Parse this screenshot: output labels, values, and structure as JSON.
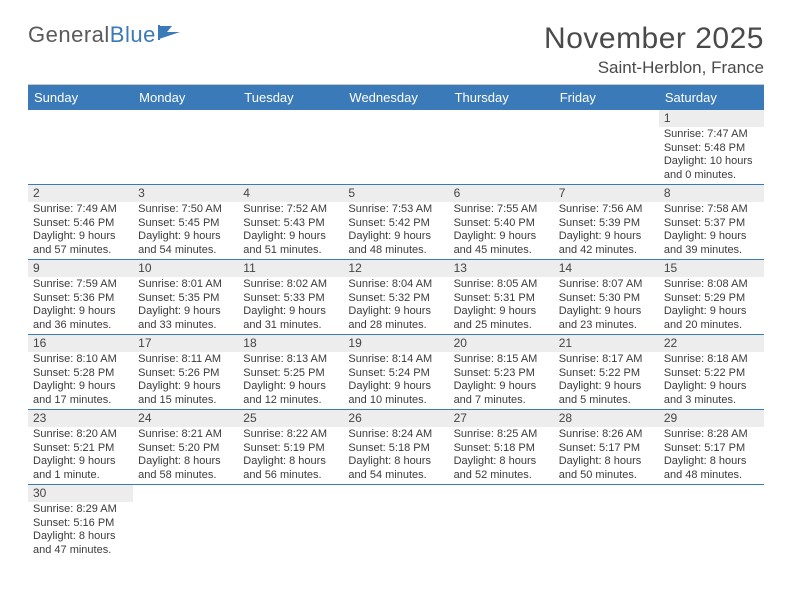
{
  "logo": {
    "part1": "General",
    "part2": "Blue"
  },
  "title": "November 2025",
  "location": "Saint-Herblon, France",
  "colors": {
    "header_bg": "#3a7ab8",
    "header_fg": "#ffffff",
    "daynum_bg": "#ededed",
    "row_border": "#3a7ab8",
    "text": "#3b3b3b"
  },
  "weekdays": [
    "Sunday",
    "Monday",
    "Tuesday",
    "Wednesday",
    "Thursday",
    "Friday",
    "Saturday"
  ],
  "weeks": [
    [
      null,
      null,
      null,
      null,
      null,
      null,
      {
        "n": "1",
        "sunrise": "7:47 AM",
        "sunset": "5:48 PM",
        "daylight": "10 hours and 0 minutes."
      }
    ],
    [
      {
        "n": "2",
        "sunrise": "7:49 AM",
        "sunset": "5:46 PM",
        "daylight": "9 hours and 57 minutes."
      },
      {
        "n": "3",
        "sunrise": "7:50 AM",
        "sunset": "5:45 PM",
        "daylight": "9 hours and 54 minutes."
      },
      {
        "n": "4",
        "sunrise": "7:52 AM",
        "sunset": "5:43 PM",
        "daylight": "9 hours and 51 minutes."
      },
      {
        "n": "5",
        "sunrise": "7:53 AM",
        "sunset": "5:42 PM",
        "daylight": "9 hours and 48 minutes."
      },
      {
        "n": "6",
        "sunrise": "7:55 AM",
        "sunset": "5:40 PM",
        "daylight": "9 hours and 45 minutes."
      },
      {
        "n": "7",
        "sunrise": "7:56 AM",
        "sunset": "5:39 PM",
        "daylight": "9 hours and 42 minutes."
      },
      {
        "n": "8",
        "sunrise": "7:58 AM",
        "sunset": "5:37 PM",
        "daylight": "9 hours and 39 minutes."
      }
    ],
    [
      {
        "n": "9",
        "sunrise": "7:59 AM",
        "sunset": "5:36 PM",
        "daylight": "9 hours and 36 minutes."
      },
      {
        "n": "10",
        "sunrise": "8:01 AM",
        "sunset": "5:35 PM",
        "daylight": "9 hours and 33 minutes."
      },
      {
        "n": "11",
        "sunrise": "8:02 AM",
        "sunset": "5:33 PM",
        "daylight": "9 hours and 31 minutes."
      },
      {
        "n": "12",
        "sunrise": "8:04 AM",
        "sunset": "5:32 PM",
        "daylight": "9 hours and 28 minutes."
      },
      {
        "n": "13",
        "sunrise": "8:05 AM",
        "sunset": "5:31 PM",
        "daylight": "9 hours and 25 minutes."
      },
      {
        "n": "14",
        "sunrise": "8:07 AM",
        "sunset": "5:30 PM",
        "daylight": "9 hours and 23 minutes."
      },
      {
        "n": "15",
        "sunrise": "8:08 AM",
        "sunset": "5:29 PM",
        "daylight": "9 hours and 20 minutes."
      }
    ],
    [
      {
        "n": "16",
        "sunrise": "8:10 AM",
        "sunset": "5:28 PM",
        "daylight": "9 hours and 17 minutes."
      },
      {
        "n": "17",
        "sunrise": "8:11 AM",
        "sunset": "5:26 PM",
        "daylight": "9 hours and 15 minutes."
      },
      {
        "n": "18",
        "sunrise": "8:13 AM",
        "sunset": "5:25 PM",
        "daylight": "9 hours and 12 minutes."
      },
      {
        "n": "19",
        "sunrise": "8:14 AM",
        "sunset": "5:24 PM",
        "daylight": "9 hours and 10 minutes."
      },
      {
        "n": "20",
        "sunrise": "8:15 AM",
        "sunset": "5:23 PM",
        "daylight": "9 hours and 7 minutes."
      },
      {
        "n": "21",
        "sunrise": "8:17 AM",
        "sunset": "5:22 PM",
        "daylight": "9 hours and 5 minutes."
      },
      {
        "n": "22",
        "sunrise": "8:18 AM",
        "sunset": "5:22 PM",
        "daylight": "9 hours and 3 minutes."
      }
    ],
    [
      {
        "n": "23",
        "sunrise": "8:20 AM",
        "sunset": "5:21 PM",
        "daylight": "9 hours and 1 minute."
      },
      {
        "n": "24",
        "sunrise": "8:21 AM",
        "sunset": "5:20 PM",
        "daylight": "8 hours and 58 minutes."
      },
      {
        "n": "25",
        "sunrise": "8:22 AM",
        "sunset": "5:19 PM",
        "daylight": "8 hours and 56 minutes."
      },
      {
        "n": "26",
        "sunrise": "8:24 AM",
        "sunset": "5:18 PM",
        "daylight": "8 hours and 54 minutes."
      },
      {
        "n": "27",
        "sunrise": "8:25 AM",
        "sunset": "5:18 PM",
        "daylight": "8 hours and 52 minutes."
      },
      {
        "n": "28",
        "sunrise": "8:26 AM",
        "sunset": "5:17 PM",
        "daylight": "8 hours and 50 minutes."
      },
      {
        "n": "29",
        "sunrise": "8:28 AM",
        "sunset": "5:17 PM",
        "daylight": "8 hours and 48 minutes."
      }
    ],
    [
      {
        "n": "30",
        "sunrise": "8:29 AM",
        "sunset": "5:16 PM",
        "daylight": "8 hours and 47 minutes."
      },
      null,
      null,
      null,
      null,
      null,
      null
    ]
  ],
  "labels": {
    "sunrise": "Sunrise: ",
    "sunset": "Sunset: ",
    "daylight": "Daylight: "
  }
}
